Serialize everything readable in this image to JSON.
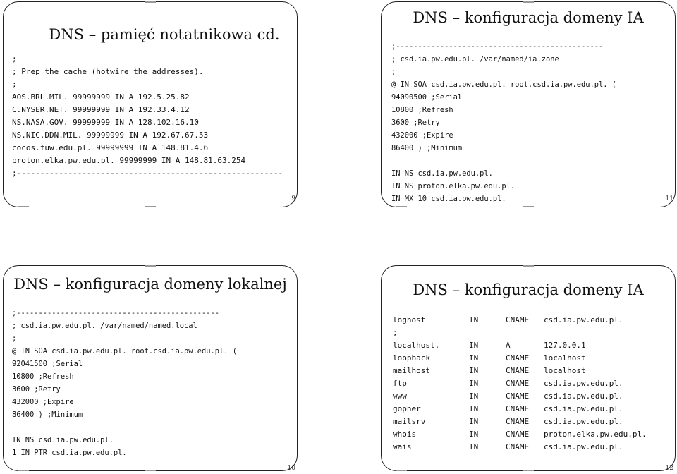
{
  "slides": {
    "s9": {
      "title": "DNS – pamięć notatnikowa cd.",
      "page": "9",
      "lines": [
        ";",
        ";  Prep the cache (hotwire the addresses).",
        ";",
        "AOS.BRL.MIL.          99999999  IN A  192.5.25.82",
        "C.NYSER.NET.          99999999  IN A  192.33.4.12",
        "NS.NASA.GOV.          99999999  IN A  128.102.16.10",
        "NS.NIC.DDN.MIL.       99999999  IN A  192.67.67.53",
        "cocos.fuw.edu.pl.     99999999  IN A  148.81.4.6",
        "proton.elka.pw.edu.pl. 99999999  IN A  148.81.63.254",
        ";---------------------------------------------------------"
      ]
    },
    "s11": {
      "title": "DNS – konfiguracja domeny IA",
      "page": "11",
      "lines": [
        ";-----------------------------------------------",
        "; csd.ia.pw.edu.pl.     /var/named/ia.zone",
        ";",
        "@  IN SOA   csd.ia.pw.edu.pl.     root.csd.ia.pw.edu.pl.  (",
        "            94090500        ;Serial",
        "            10800           ;Refresh",
        "            3600            ;Retry",
        "            432000          ;Expire",
        "            86400 )         ;Minimum",
        "",
        "            IN      NS      csd.ia.pw.edu.pl.",
        "            IN      NS      proton.elka.pw.edu.pl.",
        "            IN      MX      10      csd.ia.pw.edu.pl."
      ]
    },
    "s10": {
      "title": "DNS – konfiguracja domeny lokalnej",
      "page": "10",
      "lines": [
        ";----------------------------------------------",
        "; csd.ia.pw.edu.pl.      /var/named/named.local",
        ";",
        "@  IN SOA   csd.ia.pw.edu.pl.     root.csd.ia.pw.edu.pl.  (",
        "            92041500        ;Serial",
        "            10800           ;Refresh",
        "            3600            ;Retry",
        "            432000          ;Expire",
        "            86400 )         ;Minimum",
        "",
        "            IN      NS      csd.ia.pw.edu.pl.",
        "1           IN      PTR     csd.ia.pw.edu.pl."
      ]
    },
    "s12": {
      "title": "DNS – konfiguracja domeny IA",
      "page": "12",
      "records": [
        {
          "name": "loghost",
          "cls": "IN",
          "type": "CNAME",
          "data": "csd.ia.pw.edu.pl."
        },
        {
          "name": ";",
          "cls": "",
          "type": "",
          "data": ""
        },
        {
          "name": "localhost.",
          "cls": "IN",
          "type": "A",
          "data": "127.0.0.1"
        },
        {
          "name": "loopback",
          "cls": "IN",
          "type": "CNAME",
          "data": "localhost"
        },
        {
          "name": "mailhost",
          "cls": "IN",
          "type": "CNAME",
          "data": "localhost"
        },
        {
          "name": "ftp",
          "cls": "IN",
          "type": "CNAME",
          "data": "csd.ia.pw.edu.pl."
        },
        {
          "name": "www",
          "cls": "IN",
          "type": "CNAME",
          "data": "csd.ia.pw.edu.pl."
        },
        {
          "name": "gopher",
          "cls": "IN",
          "type": "CNAME",
          "data": "csd.ia.pw.edu.pl."
        },
        {
          "name": "mailsrv",
          "cls": "IN",
          "type": "CNAME",
          "data": "csd.ia.pw.edu.pl."
        },
        {
          "name": "whois",
          "cls": "IN",
          "type": "CNAME",
          "data": "proton.elka.pw.edu.pl."
        },
        {
          "name": "wais",
          "cls": "IN",
          "type": "CNAME",
          "data": "csd.ia.pw.edu.pl."
        }
      ]
    }
  }
}
